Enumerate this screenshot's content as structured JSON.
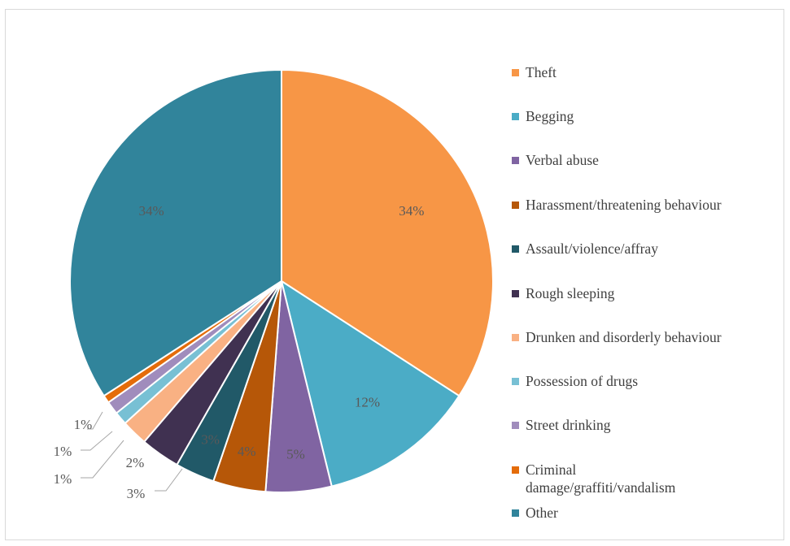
{
  "chart_data": {
    "type": "pie",
    "title": "",
    "slices": [
      {
        "label": "Theft",
        "value": 34,
        "display": "34%",
        "color": "#f79646"
      },
      {
        "label": "Begging",
        "value": 12,
        "display": "12%",
        "color": "#4bacc6"
      },
      {
        "label": "Verbal abuse",
        "value": 5,
        "display": "5%",
        "color": "#8064a2"
      },
      {
        "label": "Harassment/threatening behaviour",
        "value": 4,
        "display": "4%",
        "color": "#b65708"
      },
      {
        "label": "Assault/violence/affray",
        "value": 3,
        "display": "3%",
        "color": "#215968"
      },
      {
        "label": "Rough sleeping",
        "value": 3,
        "display": "3%",
        "color": "#403151"
      },
      {
        "label": "Drunken and disorderly behaviour",
        "value": 2,
        "display": "2%",
        "color": "#f9b183"
      },
      {
        "label": "Possession of drugs",
        "value": 1,
        "display": "1%",
        "color": "#78c0d4"
      },
      {
        "label": "Street drinking",
        "value": 1,
        "display": "1%",
        "color": "#a08cbc"
      },
      {
        "label": "Criminal damage/graffiti/vandalism",
        "value": 0.6,
        "display": "1%",
        "color": "#e46c0a"
      },
      {
        "label": "Other",
        "value": 34,
        "display": "34%",
        "color": "#31849b"
      }
    ],
    "legend_position": "right"
  }
}
